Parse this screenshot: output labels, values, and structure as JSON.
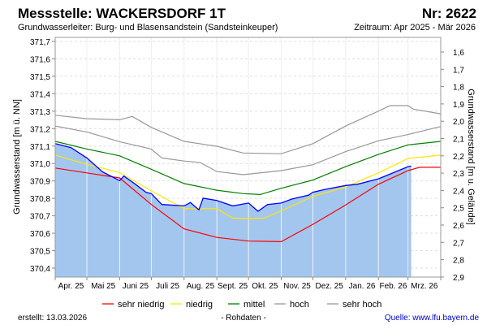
{
  "header": {
    "title": "Messstelle: WACKERSDORF 1T",
    "number": "Nr: 2622",
    "aquifer": "Grundwasserleiter:  Burg- und Blasensandstein (Sandsteinkeuper)",
    "period": "Zeitraum: Apr 2025 - Mär 2026"
  },
  "footer": {
    "created": "erstellt:  13.03.2026",
    "note": "- Rohdaten -",
    "source": "Quelle: www.lfu.bayern.de"
  },
  "chart_data": {
    "type": "line",
    "ylabel": "Grundwasserstand [m ü. NN]",
    "y2label": "Grundwasserstand [m u. Gelände]",
    "ylim": [
      370.35,
      371.75
    ],
    "yticks": [
      "371,7",
      "371,6",
      "371,5",
      "371,4",
      "371,3",
      "371,2",
      "371,1",
      "371,0",
      "370,9",
      "370,8",
      "370,7",
      "370,6",
      "370,5",
      "370,4"
    ],
    "y2ticks": [
      "1,6",
      "1,7",
      "1,8",
      "1,9",
      "2,0",
      "2,1",
      "2,2",
      "2,3",
      "2,4",
      "2,5",
      "2,6",
      "2,7",
      "2,8",
      "2,9"
    ],
    "xlim": [
      "2025-04-01",
      "2026-04-01"
    ],
    "xticks": [
      "Apr. 25",
      "Mai 25",
      "Juni 25",
      "Juli 25",
      "Aug. 25",
      "Sept. 25",
      "Okt. 25",
      "Nov. 25",
      "Dez. 25",
      "Jan. 26",
      "Feb. 26",
      "Mrz. 26"
    ],
    "grid": true,
    "legend_position": "bottom",
    "colors": {
      "measured": "#0000ff",
      "fill": "#a3c6ef",
      "sehr_niedrig": "#ff0000",
      "niedrig": "#ffe600",
      "mittel": "#008000",
      "hoch": "#999999",
      "sehr_hoch": "#999999"
    },
    "measured": [
      [
        "2025-04-01",
        371.114
      ],
      [
        "2025-04-16",
        371.091
      ],
      [
        "2025-05-01",
        371.032
      ],
      [
        "2025-05-16",
        370.951
      ],
      [
        "2025-06-01",
        370.902
      ],
      [
        "2025-06-05",
        370.928
      ],
      [
        "2025-06-16",
        370.881
      ],
      [
        "2025-06-26",
        370.835
      ],
      [
        "2025-07-01",
        370.827
      ],
      [
        "2025-07-11",
        370.765
      ],
      [
        "2025-08-01",
        370.757
      ],
      [
        "2025-08-07",
        370.776
      ],
      [
        "2025-08-15",
        370.734
      ],
      [
        "2025-08-19",
        370.801
      ],
      [
        "2025-09-01",
        370.788
      ],
      [
        "2025-09-16",
        370.757
      ],
      [
        "2025-10-01",
        370.773
      ],
      [
        "2025-10-10",
        370.726
      ],
      [
        "2025-10-19",
        370.765
      ],
      [
        "2025-11-01",
        370.773
      ],
      [
        "2025-11-11",
        370.796
      ],
      [
        "2025-11-27",
        370.819
      ],
      [
        "2025-12-01",
        370.835
      ],
      [
        "2025-12-12",
        370.851
      ],
      [
        "2026-01-01",
        370.874
      ],
      [
        "2026-01-12",
        370.881
      ],
      [
        "2026-02-01",
        370.912
      ],
      [
        "2026-03-01",
        370.982
      ],
      [
        "2026-03-04",
        370.985
      ]
    ],
    "series": [
      {
        "name": "sehr niedrig",
        "key": "sehr_niedrig",
        "values": [
          [
            "2025-04-01",
            370.974
          ],
          [
            "2025-05-01",
            370.946
          ],
          [
            "2025-06-01",
            370.917
          ],
          [
            "2025-07-01",
            370.765
          ],
          [
            "2025-08-01",
            370.625
          ],
          [
            "2025-09-01",
            370.576
          ],
          [
            "2025-10-01",
            370.555
          ],
          [
            "2025-11-01",
            370.552
          ],
          [
            "2025-12-01",
            370.651
          ],
          [
            "2026-01-01",
            370.762
          ],
          [
            "2026-02-01",
            370.881
          ],
          [
            "2026-03-01",
            370.959
          ],
          [
            "2026-03-12",
            370.978
          ],
          [
            "2026-04-01",
            370.978
          ]
        ]
      },
      {
        "name": "niedrig",
        "key": "niedrig",
        "values": [
          [
            "2025-04-01",
            371.048
          ],
          [
            "2025-05-01",
            370.995
          ],
          [
            "2025-06-01",
            370.948
          ],
          [
            "2025-07-01",
            370.843
          ],
          [
            "2025-08-01",
            370.741
          ],
          [
            "2025-09-01",
            370.741
          ],
          [
            "2025-09-16",
            370.687
          ],
          [
            "2025-10-01",
            370.684
          ],
          [
            "2025-10-16",
            370.687
          ],
          [
            "2025-11-01",
            370.729
          ],
          [
            "2025-12-01",
            370.811
          ],
          [
            "2026-01-01",
            370.866
          ],
          [
            "2026-02-01",
            370.946
          ],
          [
            "2026-03-01",
            371.029
          ],
          [
            "2026-04-01",
            371.048
          ]
        ]
      },
      {
        "name": "mittel",
        "key": "mittel",
        "values": [
          [
            "2025-04-01",
            371.127
          ],
          [
            "2025-05-01",
            371.083
          ],
          [
            "2025-06-01",
            371.044
          ],
          [
            "2025-07-01",
            370.967
          ],
          [
            "2025-08-01",
            370.885
          ],
          [
            "2025-09-01",
            370.847
          ],
          [
            "2025-09-26",
            370.827
          ],
          [
            "2025-10-12",
            370.822
          ],
          [
            "2025-11-01",
            370.858
          ],
          [
            "2025-12-01",
            370.905
          ],
          [
            "2026-01-01",
            370.982
          ],
          [
            "2026-02-01",
            371.052
          ],
          [
            "2026-03-01",
            371.107
          ],
          [
            "2026-04-01",
            371.127
          ]
        ]
      },
      {
        "name": "hoch",
        "key": "hoch",
        "values": [
          [
            "2025-04-01",
            371.215
          ],
          [
            "2025-05-01",
            371.181
          ],
          [
            "2025-06-01",
            371.125
          ],
          [
            "2025-07-01",
            371.083
          ],
          [
            "2025-07-11",
            371.032
          ],
          [
            "2025-08-01",
            371.014
          ],
          [
            "2025-08-16",
            371.006
          ],
          [
            "2025-09-01",
            370.954
          ],
          [
            "2025-09-26",
            370.936
          ],
          [
            "2025-11-01",
            370.959
          ],
          [
            "2025-12-01",
            370.993
          ],
          [
            "2026-01-01",
            371.068
          ],
          [
            "2026-02-01",
            371.13
          ],
          [
            "2026-03-01",
            371.166
          ],
          [
            "2026-04-01",
            371.212
          ]
        ]
      },
      {
        "name": "sehr hoch",
        "key": "sehr_hoch",
        "values": [
          [
            "2025-04-01",
            371.277
          ],
          [
            "2025-05-01",
            371.257
          ],
          [
            "2025-06-01",
            371.251
          ],
          [
            "2025-06-13",
            371.27
          ],
          [
            "2025-07-01",
            371.207
          ],
          [
            "2025-08-01",
            371.127
          ],
          [
            "2025-09-01",
            371.099
          ],
          [
            "2025-09-26",
            371.06
          ],
          [
            "2025-11-01",
            371.056
          ],
          [
            "2025-12-01",
            371.114
          ],
          [
            "2026-01-01",
            371.215
          ],
          [
            "2026-02-01",
            371.3
          ],
          [
            "2026-02-12",
            371.332
          ],
          [
            "2026-03-01",
            371.332
          ],
          [
            "2026-03-06",
            371.312
          ],
          [
            "2026-04-01",
            371.285
          ]
        ]
      }
    ]
  }
}
